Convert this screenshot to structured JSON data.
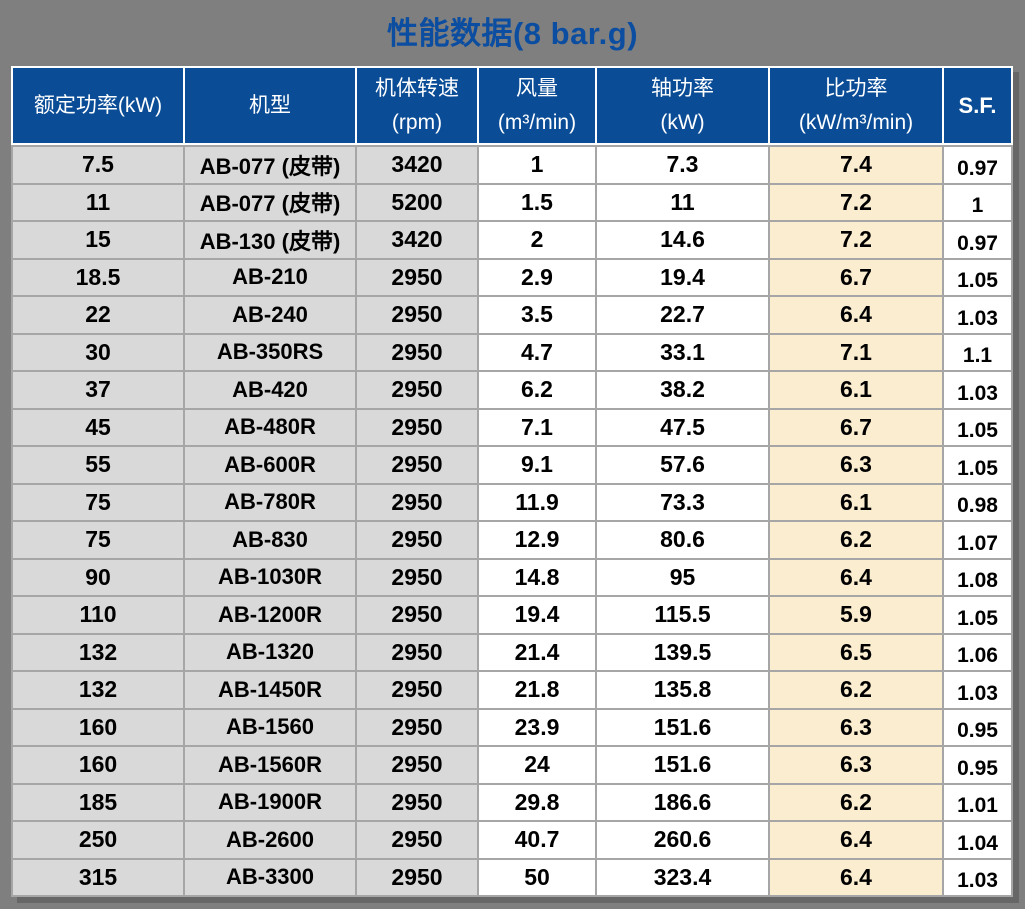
{
  "title": "性能数据(8 bar.g)",
  "chart_data": {
    "type": "table",
    "title": "性能数据(8 bar.g)",
    "columns": [
      "额定功率(kW)",
      "机型",
      "机体转速 (rpm)",
      "风量 (m³/min)",
      "轴功率 (kW)",
      "比功率 (kW/m³/min)",
      "S.F."
    ],
    "rows": [
      [
        "7.5",
        "AB-077 (皮带)",
        "3420",
        "1",
        "7.3",
        "7.4",
        "0.97"
      ],
      [
        "11",
        "AB-077 (皮带)",
        "5200",
        "1.5",
        "11",
        "7.2",
        "1"
      ],
      [
        "15",
        "AB-130 (皮带)",
        "3420",
        "2",
        "14.6",
        "7.2",
        "0.97"
      ],
      [
        "18.5",
        "AB-210",
        "2950",
        "2.9",
        "19.4",
        "6.7",
        "1.05"
      ],
      [
        "22",
        "AB-240",
        "2950",
        "3.5",
        "22.7",
        "6.4",
        "1.03"
      ],
      [
        "30",
        "AB-350RS",
        "2950",
        "4.7",
        "33.1",
        "7.1",
        "1.1"
      ],
      [
        "37",
        "AB-420",
        "2950",
        "6.2",
        "38.2",
        "6.1",
        "1.03"
      ],
      [
        "45",
        "AB-480R",
        "2950",
        "7.1",
        "47.5",
        "6.7",
        "1.05"
      ],
      [
        "55",
        "AB-600R",
        "2950",
        "9.1",
        "57.6",
        "6.3",
        "1.05"
      ],
      [
        "75",
        "AB-780R",
        "2950",
        "11.9",
        "73.3",
        "6.1",
        "0.98"
      ],
      [
        "75",
        "AB-830",
        "2950",
        "12.9",
        "80.6",
        "6.2",
        "1.07"
      ],
      [
        "90",
        "AB-1030R",
        "2950",
        "14.8",
        "95",
        "6.4",
        "1.08"
      ],
      [
        "110",
        "AB-1200R",
        "2950",
        "19.4",
        "115.5",
        "5.9",
        "1.05"
      ],
      [
        "132",
        "AB-1320",
        "2950",
        "21.4",
        "139.5",
        "6.5",
        "1.06"
      ],
      [
        "132",
        "AB-1450R",
        "2950",
        "21.8",
        "135.8",
        "6.2",
        "1.03"
      ],
      [
        "160",
        "AB-1560",
        "2950",
        "23.9",
        "151.6",
        "6.3",
        "0.95"
      ],
      [
        "160",
        "AB-1560R",
        "2950",
        "24",
        "151.6",
        "6.3",
        "0.95"
      ],
      [
        "185",
        "AB-1900R",
        "2950",
        "29.8",
        "186.6",
        "6.2",
        "1.01"
      ],
      [
        "250",
        "AB-2600",
        "2950",
        "40.7",
        "260.6",
        "6.4",
        "1.04"
      ],
      [
        "315",
        "AB-3300",
        "2950",
        "50",
        "323.4",
        "6.4",
        "1.03"
      ]
    ]
  },
  "table": {
    "headers": [
      {
        "lines": [
          "额定功率(kW)"
        ]
      },
      {
        "lines": [
          "机型"
        ]
      },
      {
        "lines": [
          "机体转速",
          "(rpm)"
        ]
      },
      {
        "lines": [
          "风量",
          "(m³/min)"
        ]
      },
      {
        "lines": [
          "轴功率",
          "(kW)"
        ]
      },
      {
        "lines": [
          "比功率",
          "(kW/m³/min)"
        ]
      },
      {
        "lines": [
          "S.F."
        ]
      }
    ],
    "column_keys": [
      "rated-power",
      "model",
      "speed",
      "airflow",
      "shaft-power",
      "specific-power",
      "service-factor"
    ]
  },
  "colors": {
    "page_background": "#7F7F7F",
    "title_text": "#0B4DA0",
    "header_background": "#0A4C96",
    "header_text": "#FFFFFF",
    "gray_cell": "#D9D9D9",
    "cream_cell": "#FBEED0",
    "white_cell": "#FFFFFF",
    "grid_border": "#A6A6A6",
    "header_border": "#FFFFFF",
    "shadow": "#676767"
  }
}
